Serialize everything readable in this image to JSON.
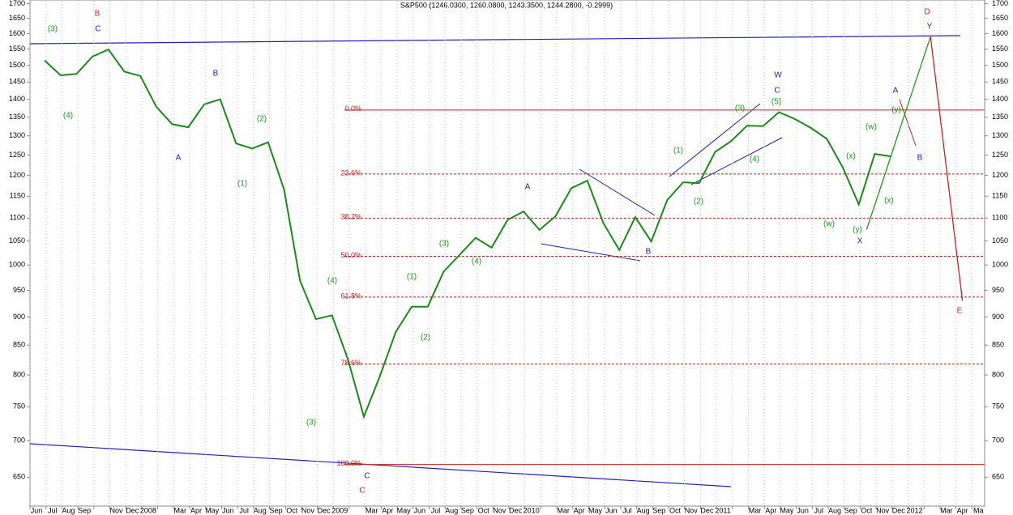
{
  "chart_data": {
    "type": "line",
    "title": "S&P500 (1246.0300, 1260.0800, 1243.3500, 1244.2800, -0.2999)",
    "log_scale": true,
    "grid": true,
    "ylim": [
      613,
      1710
    ],
    "yticks": [
      650,
      700,
      750,
      800,
      850,
      900,
      950,
      1000,
      1050,
      1100,
      1150,
      1200,
      1250,
      1300,
      1350,
      1400,
      1450,
      1500,
      1550,
      1600,
      1650,
      1700
    ],
    "categories": [
      "Jun",
      "Jul",
      "Aug",
      "Sep",
      null,
      "Nov",
      "Dec",
      "2008",
      null,
      "Mar",
      "Apr",
      "May",
      "Jun",
      "Jul",
      "Aug",
      "Sep",
      "Oct",
      "Nov",
      "Dec",
      "2009",
      null,
      "Mar",
      "Apr",
      "May",
      "Jun",
      "Jul",
      "Aug",
      "Sep",
      "Oct",
      "Nov",
      "Dec",
      "2010",
      null,
      "Mar",
      "Apr",
      "May",
      "Jun",
      "Jul",
      "Aug",
      "Sep",
      "Oct",
      "Nov",
      "Dec",
      "2011",
      null,
      "Mar",
      "Apr",
      "May",
      "Jun",
      "Jul",
      "Aug",
      "Sep",
      "Oct",
      "Nov",
      "Dec",
      "2012",
      null,
      "Mar",
      "Apr",
      "Ma"
    ],
    "series": [
      {
        "name": "S&P500",
        "color": "#1a8a1a",
        "values": [
          1515,
          1470,
          1474,
          1527,
          1549,
          1481,
          1468,
          1379,
          1331,
          1323,
          1386,
          1400,
          1280,
          1267,
          1283,
          1166,
          969,
          896,
          903,
          826,
          735,
          798,
          873,
          919,
          919,
          987,
          1021,
          1057,
          1036,
          1096,
          1115,
          1074,
          1104,
          1169,
          1187,
          1089,
          1031,
          1102,
          1049,
          1141,
          1183,
          1181,
          1258,
          1286,
          1327,
          1326,
          1364,
          1345,
          1321,
          1292,
          1219,
          1131,
          1253,
          1247,
          null,
          null,
          null,
          null,
          null,
          null
        ]
      },
      {
        "name": "Projection up",
        "color": "#1a9a1a",
        "values": [
          null,
          null,
          null,
          null,
          null,
          null,
          null,
          null,
          null,
          null,
          null,
          null,
          null,
          null,
          null,
          null,
          null,
          null,
          null,
          null,
          null,
          null,
          null,
          null,
          null,
          null,
          null,
          null,
          null,
          null,
          null,
          null,
          null,
          null,
          null,
          null,
          null,
          null,
          null,
          null,
          null,
          null,
          null,
          null,
          null,
          null,
          null,
          null,
          null,
          null,
          null,
          null,
          1075,
          1185,
          1308,
          1442,
          1590,
          null,
          null,
          null
        ]
      },
      {
        "name": "Projection down",
        "color": "#d02020",
        "values": [
          null,
          null,
          null,
          null,
          null,
          null,
          null,
          null,
          null,
          null,
          null,
          null,
          null,
          null,
          null,
          null,
          null,
          null,
          null,
          null,
          null,
          null,
          null,
          null,
          null,
          null,
          null,
          null,
          null,
          null,
          null,
          null,
          null,
          null,
          null,
          null,
          null,
          null,
          null,
          null,
          null,
          null,
          null,
          null,
          null,
          null,
          null,
          null,
          null,
          null,
          null,
          null,
          null,
          null,
          null,
          null,
          1590,
          1216,
          930,
          null
        ]
      }
    ],
    "fib_levels": [
      {
        "label": "0.0%",
        "value": 1370
      },
      {
        "label": "23.6%",
        "value": 1203
      },
      {
        "label": "38.2%",
        "value": 1100
      },
      {
        "label": "50.0%",
        "value": 1018
      },
      {
        "label": "61.8%",
        "value": 937
      },
      {
        "label": "78.6%",
        "value": 818
      },
      {
        "label": "100.0%",
        "value": 667
      }
    ],
    "annotations": [
      {
        "text": "(3)",
        "color": "#1a9a1a"
      },
      {
        "text": "B",
        "color": "#d02020"
      },
      {
        "text": "C",
        "color": "#2020c0"
      },
      {
        "text": "(4)",
        "color": "#1a9a1a"
      },
      {
        "text": "B",
        "color": "#2020c0"
      },
      {
        "text": "A",
        "color": "#2020c0"
      },
      {
        "text": "(2)",
        "color": "#1a9a1a"
      },
      {
        "text": "(1)",
        "color": "#1a9a1a"
      },
      {
        "text": "(4)",
        "color": "#1a9a1a"
      },
      {
        "text": "(3)",
        "color": "#1a9a1a"
      },
      {
        "text": "C",
        "color": "#2020c0"
      },
      {
        "text": "C",
        "color": "#d02020"
      },
      {
        "text": "(1)",
        "color": "#1a9a1a"
      },
      {
        "text": "(2)",
        "color": "#1a9a1a"
      },
      {
        "text": "(3)",
        "color": "#1a9a1a"
      },
      {
        "text": "(4)",
        "color": "#1a9a1a"
      },
      {
        "text": "A",
        "color": "#2020c0"
      },
      {
        "text": "B",
        "color": "#2020c0"
      },
      {
        "text": "(1)",
        "color": "#1a9a1a"
      },
      {
        "text": "(2)",
        "color": "#1a9a1a"
      },
      {
        "text": "(3)",
        "color": "#1a9a1a"
      },
      {
        "text": "(4)",
        "color": "#1a9a1a"
      },
      {
        "text": "(5)",
        "color": "#1a9a1a"
      },
      {
        "text": "C",
        "color": "#2020c0"
      },
      {
        "text": "W",
        "color": "#2020c0"
      },
      {
        "text": "(w)",
        "color": "#1a9a1a"
      },
      {
        "text": "(x)",
        "color": "#1a9a1a"
      },
      {
        "text": "(w)",
        "color": "#1a9a1a"
      },
      {
        "text": "(y)",
        "color": "#1a9a1a"
      },
      {
        "text": "X",
        "color": "#2020c0"
      },
      {
        "text": "(y)",
        "color": "#1a9a1a"
      },
      {
        "text": "(x)",
        "color": "#1a9a1a"
      },
      {
        "text": "A",
        "color": "#2020c0"
      },
      {
        "text": "B",
        "color": "#2020c0"
      },
      {
        "text": "D",
        "color": "#d02020"
      },
      {
        "text": "Y",
        "color": "#2020c0"
      },
      {
        "text": "E",
        "color": "#d02020"
      }
    ]
  }
}
